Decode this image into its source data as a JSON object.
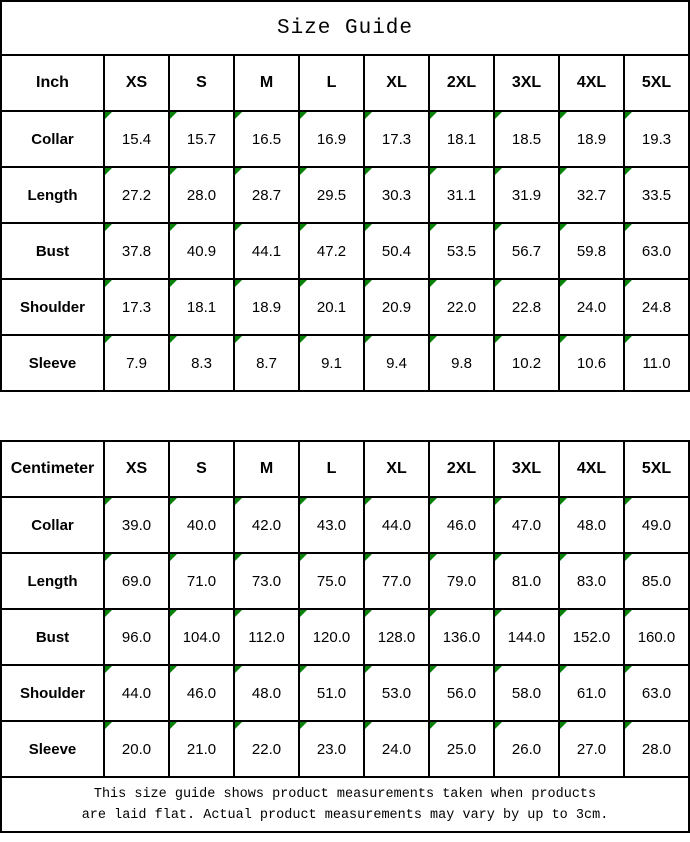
{
  "title": "Size Guide",
  "colors": {
    "marker_green": "#088108",
    "border_black": "#000000"
  },
  "tables": [
    {
      "unit_label": "Inch",
      "sizes": [
        "XS",
        "S",
        "M",
        "L",
        "XL",
        "2XL",
        "3XL",
        "4XL",
        "5XL"
      ],
      "rows": [
        {
          "label": "Collar",
          "values": [
            "15.4",
            "15.7",
            "16.5",
            "16.9",
            "17.3",
            "18.1",
            "18.5",
            "18.9",
            "19.3"
          ]
        },
        {
          "label": "Length",
          "values": [
            "27.2",
            "28.0",
            "28.7",
            "29.5",
            "30.3",
            "31.1",
            "31.9",
            "32.7",
            "33.5"
          ]
        },
        {
          "label": "Bust",
          "values": [
            "37.8",
            "40.9",
            "44.1",
            "47.2",
            "50.4",
            "53.5",
            "56.7",
            "59.8",
            "63.0"
          ]
        },
        {
          "label": "Shoulder",
          "values": [
            "17.3",
            "18.1",
            "18.9",
            "20.1",
            "20.9",
            "22.0",
            "22.8",
            "24.0",
            "24.8"
          ]
        },
        {
          "label": "Sleeve",
          "values": [
            "7.9",
            "8.3",
            "8.7",
            "9.1",
            "9.4",
            "9.8",
            "10.2",
            "10.6",
            "11.0"
          ]
        }
      ]
    },
    {
      "unit_label": "Centimeter",
      "sizes": [
        "XS",
        "S",
        "M",
        "L",
        "XL",
        "2XL",
        "3XL",
        "4XL",
        "5XL"
      ],
      "rows": [
        {
          "label": "Collar",
          "values": [
            "39.0",
            "40.0",
            "42.0",
            "43.0",
            "44.0",
            "46.0",
            "47.0",
            "48.0",
            "49.0"
          ]
        },
        {
          "label": "Length",
          "values": [
            "69.0",
            "71.0",
            "73.0",
            "75.0",
            "77.0",
            "79.0",
            "81.0",
            "83.0",
            "85.0"
          ]
        },
        {
          "label": "Bust",
          "values": [
            "96.0",
            "104.0",
            "112.0",
            "120.0",
            "128.0",
            "136.0",
            "144.0",
            "152.0",
            "160.0"
          ]
        },
        {
          "label": "Shoulder",
          "values": [
            "44.0",
            "46.0",
            "48.0",
            "51.0",
            "53.0",
            "56.0",
            "58.0",
            "61.0",
            "63.0"
          ]
        },
        {
          "label": "Sleeve",
          "values": [
            "20.0",
            "21.0",
            "22.0",
            "23.0",
            "24.0",
            "25.0",
            "26.0",
            "27.0",
            "28.0"
          ]
        }
      ]
    }
  ],
  "footer": {
    "lines": [
      "This size guide shows product measurements taken when products",
      "are laid flat. Actual product measurements may vary by up to 3cm."
    ]
  }
}
